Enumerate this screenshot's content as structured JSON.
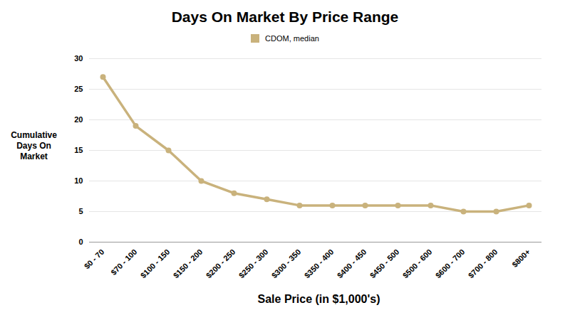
{
  "chart_data": {
    "type": "line",
    "title": "Days On Market By Price Range",
    "x_label": "Sale Price (in $1,000's)",
    "y_label": "Cumulative Days On Market",
    "categories": [
      "$0 - 70",
      "$70 - 100",
      "$100 - 150",
      "$150 - 200",
      "$200 - 250",
      "$250 - 300",
      "$300 - 350",
      "$350 - 400",
      "$400 - 450",
      "$450 - 500",
      "$500 - 600",
      "$600 - 700",
      "$700 - 800",
      "$800+"
    ],
    "series": [
      {
        "name": "CDOM, median",
        "color": "#c9b27c",
        "marker": "circle",
        "values": [
          27,
          19,
          15,
          10,
          8,
          7,
          6,
          6,
          6,
          6,
          6,
          5,
          5,
          6
        ]
      }
    ],
    "ylim": [
      0,
      30
    ],
    "yticks": [
      0,
      5,
      10,
      15,
      20,
      25,
      30
    ],
    "grid": true,
    "legend": "top"
  }
}
